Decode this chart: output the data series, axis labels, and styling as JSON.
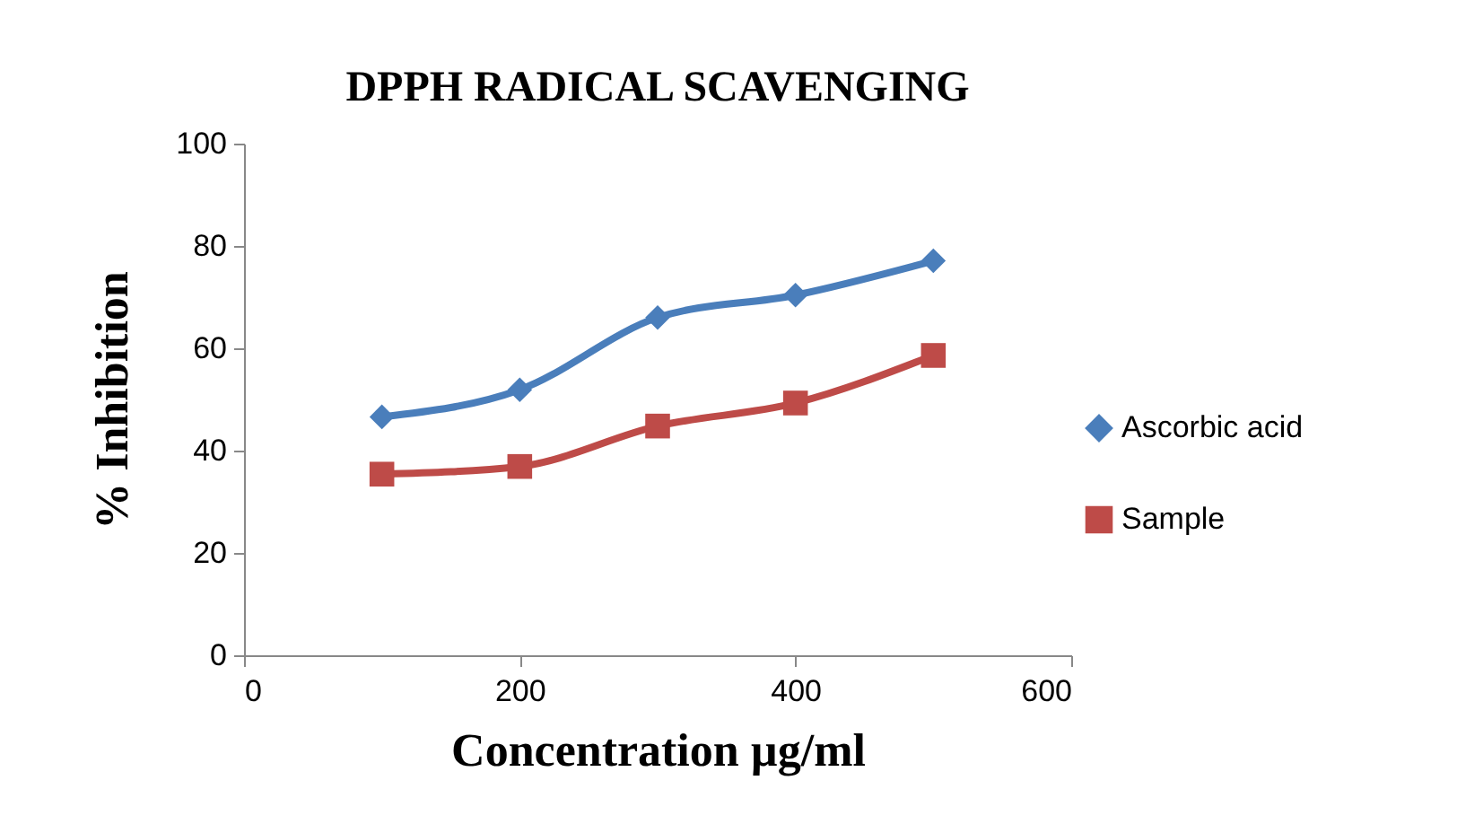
{
  "chart_data": {
    "type": "line",
    "title": "DPPH RADICAL SCAVENGING",
    "xlabel": "Concentration µg/ml",
    "ylabel": "% Inhibition",
    "x": [
      100,
      200,
      300,
      400,
      500
    ],
    "series": [
      {
        "name": "Ascorbic acid",
        "color": "#4a7ebb",
        "marker": "diamond",
        "values": [
          46.6,
          51.9,
          66.0,
          70.4,
          77.1
        ]
      },
      {
        "name": "Sample",
        "color": "#be4b48",
        "marker": "square",
        "values": [
          35.4,
          36.9,
          44.8,
          49.3,
          58.6
        ]
      }
    ],
    "xlim": [
      0,
      600
    ],
    "xticks": [
      0,
      200,
      400,
      600
    ],
    "ylim": [
      0,
      100
    ],
    "yticks": [
      0,
      20,
      40,
      60,
      80,
      100
    ],
    "grid": false,
    "legend": "right",
    "line_style": "solid"
  }
}
